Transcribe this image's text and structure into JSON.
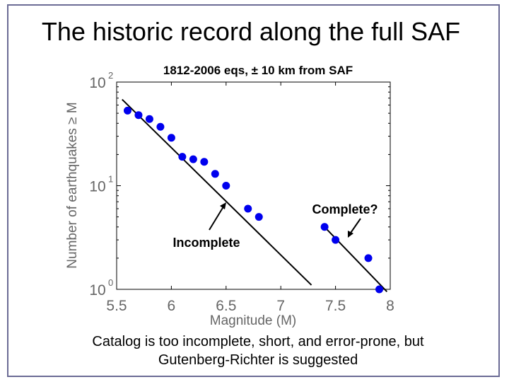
{
  "slide": {
    "title": "The historic record along the full SAF",
    "caption_line1": "Catalog is too incomplete, short, and error-prone, but",
    "caption_line2": "Gutenberg-Richter is suggested",
    "frame_color": "#6b6b95"
  },
  "chart_data": {
    "type": "scatter",
    "title": "1812-2006 eqs, ± 10 km from SAF",
    "xlabel": "Magnitude (M)",
    "ylabel": "Number of earthquakes ≥ M",
    "xlim": [
      5.5,
      8
    ],
    "ylim": [
      1,
      100
    ],
    "yscale": "log",
    "xticks": [
      5.5,
      6,
      6.5,
      7,
      7.5,
      8
    ],
    "xtick_labels": [
      "5.5",
      "6",
      "6.5",
      "7",
      "7.5",
      "8"
    ],
    "yticks": [
      {
        "value": 1,
        "base": "10",
        "exp": "0"
      },
      {
        "value": 10,
        "base": "10",
        "exp": "1"
      },
      {
        "value": 100,
        "base": "10",
        "exp": "2"
      }
    ],
    "series": [
      {
        "name": "earthquakes",
        "color": "#0000ee",
        "x": [
          5.6,
          5.7,
          5.8,
          5.9,
          6.0,
          6.1,
          6.2,
          6.3,
          6.4,
          6.5,
          6.7,
          6.8,
          7.4,
          7.5,
          7.8,
          7.9
        ],
        "y": [
          53,
          48,
          44,
          37,
          29,
          19,
          18,
          17,
          13,
          10,
          6,
          5,
          4,
          3,
          2,
          1
        ]
      }
    ],
    "fit_lines": [
      {
        "name": "incomplete-fit",
        "x": [
          5.55,
          7.28
        ],
        "y": [
          68,
          1.1
        ]
      },
      {
        "name": "complete-fit",
        "x": [
          7.38,
          7.97
        ],
        "y": [
          4.2,
          0.95
        ]
      }
    ],
    "annotations": [
      {
        "name": "incomplete",
        "text": "Incomplete"
      },
      {
        "name": "complete",
        "text": "Complete?"
      }
    ]
  }
}
